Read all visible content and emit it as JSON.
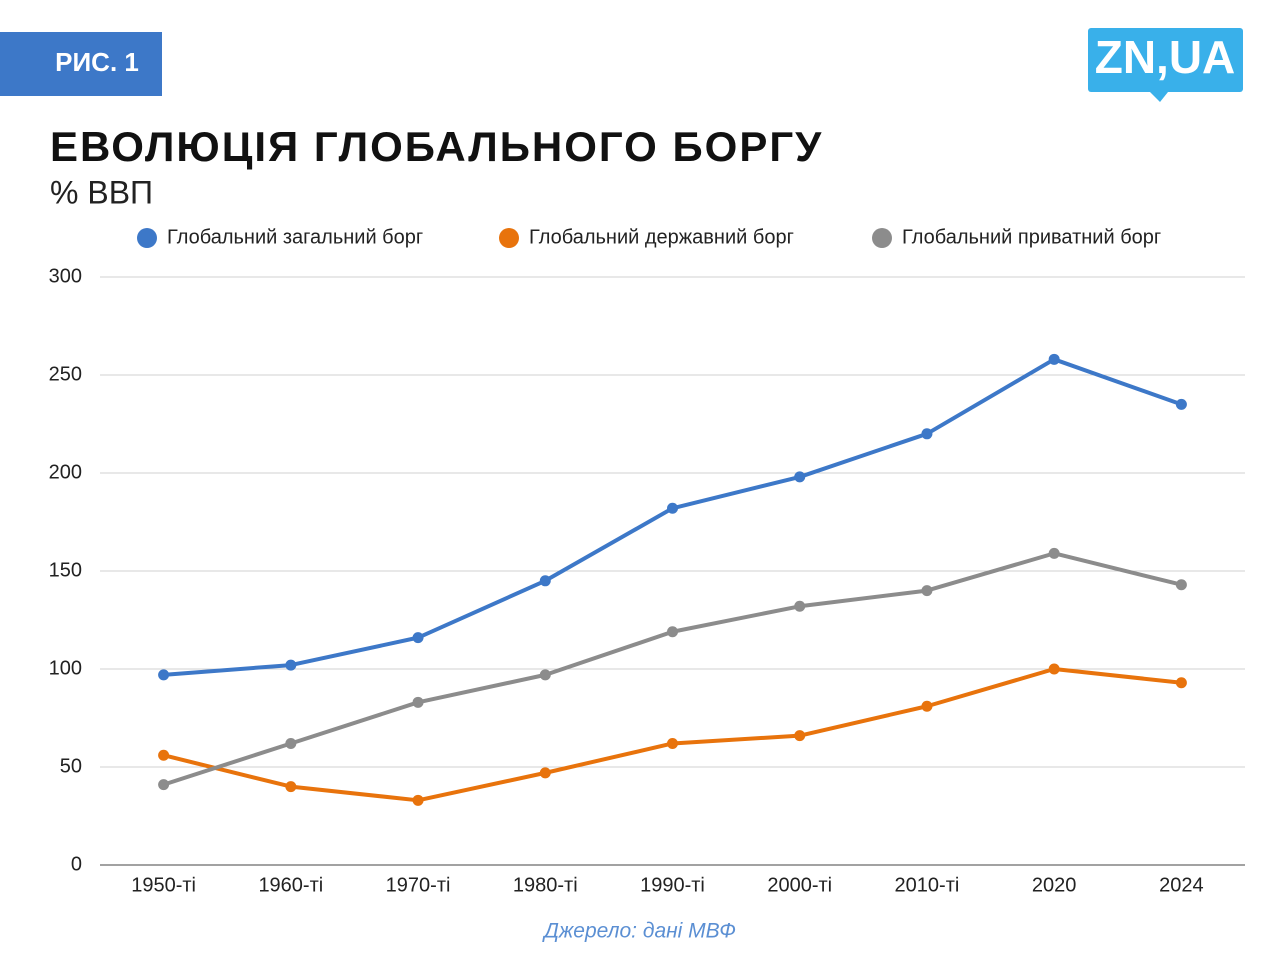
{
  "figure_label": "РИС. 1",
  "logo": "ZN,UA",
  "chart_data": {
    "type": "line",
    "title": "ЕВОЛЮЦІЯ ГЛОБАЛЬНОГО БОРГУ",
    "subtitle": "% ВВП",
    "source": "Джерело: дані МВФ",
    "categories": [
      "1950-ті",
      "1960-ті",
      "1970-ті",
      "1980-ті",
      "1990-ті",
      "2000-ті",
      "2010-ті",
      "2020",
      "2024"
    ],
    "series": [
      {
        "name": "Глобальний загальний борг",
        "color": "#3d78c8",
        "values": [
          97,
          102,
          116,
          145,
          182,
          198,
          220,
          258,
          235
        ]
      },
      {
        "name": "Глобальний державний борг",
        "color": "#e8730c",
        "values": [
          56,
          40,
          33,
          47,
          62,
          66,
          81,
          100,
          93
        ]
      },
      {
        "name": "Глобальний приватний борг",
        "color": "#8c8c8c",
        "values": [
          41,
          62,
          83,
          97,
          119,
          132,
          140,
          159,
          143
        ]
      }
    ],
    "ylim": [
      0,
      300
    ],
    "yticks": [
      0,
      50,
      100,
      150,
      200,
      250,
      300
    ],
    "grid": true
  }
}
